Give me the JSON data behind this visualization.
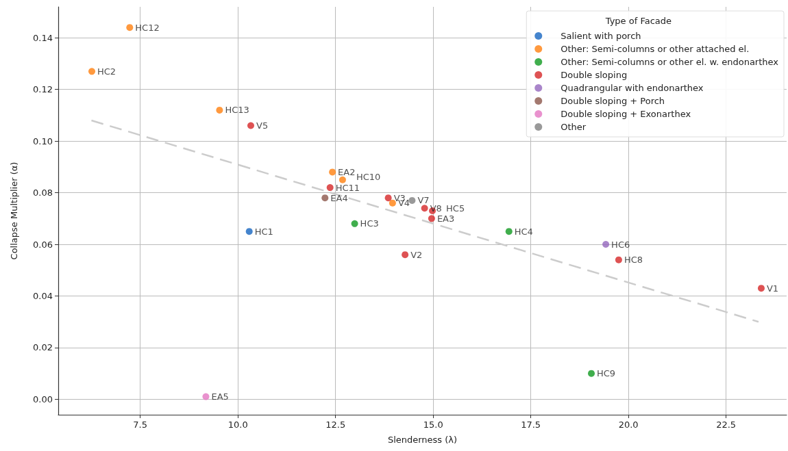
{
  "chart_data": {
    "type": "scatter",
    "xlabel": "Slenderness (λ)",
    "ylabel": "Collapse Multiplier (α)",
    "legend_title": "Type of Facade",
    "legend": "top right",
    "grid": true,
    "marker": "circle",
    "xlim": [
      5.4,
      24.05
    ],
    "ylim": [
      -0.006,
      0.152
    ],
    "xticks": [
      7.5,
      {
        "value": 10,
        "label": "10.0"
      },
      12.5,
      {
        "value": 15,
        "label": "15.0"
      },
      17.5,
      {
        "value": 20,
        "label": "20.0"
      },
      22.5
    ],
    "yticks": [
      {
        "value": 0,
        "label": "0.00"
      },
      {
        "value": 0.02,
        "label": "0.02"
      },
      {
        "value": 0.04,
        "label": "0.04"
      },
      {
        "value": 0.06,
        "label": "0.06"
      },
      {
        "value": 0.08,
        "label": "0.08"
      },
      {
        "value": 0.1,
        "label": "0.10"
      },
      {
        "value": 0.12,
        "label": "0.12"
      },
      {
        "value": 0.14,
        "label": "0.14"
      }
    ],
    "series": [
      {
        "name": "Salient with porch",
        "color": "#1565c0",
        "x": [
          10.29
        ],
        "values": [
          0.065
        ],
        "value_labels": [
          "HC1"
        ]
      },
      {
        "name": "Other: Semi-columns or other attached el.",
        "color": "#ff7f0e",
        "x": [
          7.23,
          6.26,
          9.53,
          12.42,
          12.68,
          13.96
        ],
        "values": [
          0.144,
          0.127,
          0.112,
          0.088,
          0.085,
          0.076
        ],
        "value_labels": [
          "HC12",
          "HC2",
          "HC13",
          "EA2",
          "HC10",
          "V4"
        ]
      },
      {
        "name": "Other: Semi-columns or other el. w. endonarthex",
        "color": "#109a20",
        "x": [
          12.99,
          16.94,
          19.05
        ],
        "values": [
          0.068,
          0.065,
          0.01
        ],
        "value_labels": [
          "HC3",
          "HC4",
          "HC9"
        ]
      },
      {
        "name": "Double sloping",
        "color": "#d62728",
        "x": [
          10.33,
          12.36,
          13.85,
          14.78,
          14.98,
          14.96,
          14.28,
          19.75,
          23.4
        ],
        "values": [
          0.106,
          0.082,
          0.078,
          0.074,
          0.073,
          0.07,
          0.056,
          0.054,
          0.043
        ],
        "value_labels": [
          "V5",
          "HC11",
          "V3",
          "V8",
          "HC5",
          "EA3",
          "V2",
          "HC8",
          "V1"
        ]
      },
      {
        "name": "Quadrangular with endonarthex",
        "color": "#9467bd",
        "x": [
          19.42
        ],
        "values": [
          0.06
        ],
        "value_labels": [
          "HC6"
        ]
      },
      {
        "name": "Double sloping + Porch",
        "color": "#8c564b",
        "x": [
          12.23
        ],
        "values": [
          0.078
        ],
        "value_labels": [
          "EA4"
        ]
      },
      {
        "name": "Double sloping + Exonarthex",
        "color": "#e377c2",
        "x": [
          9.18
        ],
        "values": [
          0.001
        ],
        "value_labels": [
          "EA5"
        ]
      },
      {
        "name": "Other",
        "color": "#7f7f7f",
        "x": [
          14.46
        ],
        "values": [
          0.077
        ],
        "value_labels": [
          "V7"
        ]
      },
      {
        "type": "line",
        "color": "#cccccc",
        "line_style": "dashed",
        "marker": "none",
        "x": [
          6.25,
          23.33
        ],
        "values": [
          0.108,
          0.03
        ]
      }
    ]
  }
}
